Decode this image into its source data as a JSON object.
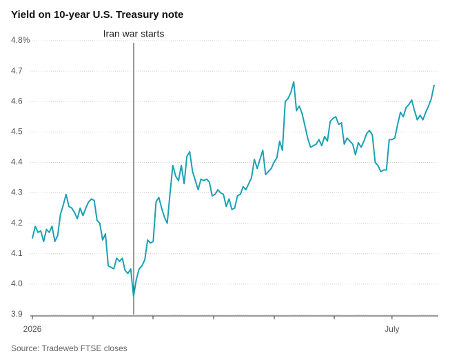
{
  "chart_data": {
    "type": "line",
    "title": "Yield on 10-year U.S. Treasury note",
    "annotation": "Iran war starts",
    "source": "Source: Tradeweb FTSE closes",
    "ylim": [
      3.9,
      4.8
    ],
    "yticks": [
      3.9,
      {
        "value": 4,
        "label": "4.0"
      },
      4.1,
      4.2,
      4.3,
      4.4,
      4.5,
      4.6,
      4.7,
      {
        "value": 4.8,
        "label": "4.8%"
      }
    ],
    "grid": true,
    "categories": [
      "2026",
      null,
      null,
      null,
      null,
      null,
      null,
      null,
      null,
      null,
      null,
      null,
      null,
      null,
      null,
      null,
      null,
      null,
      null,
      null,
      null,
      null,
      null,
      null,
      null,
      null,
      null,
      null,
      null,
      null,
      null,
      null,
      null,
      null,
      null,
      null,
      null,
      null,
      null,
      null,
      null,
      null,
      null,
      null,
      null,
      null,
      null,
      null,
      null,
      null,
      null,
      null,
      null,
      null,
      null,
      null,
      null,
      null,
      null,
      null,
      null,
      null,
      null,
      null,
      null,
      null,
      null,
      null,
      null,
      null,
      null,
      null,
      null,
      null,
      null,
      null,
      null,
      null,
      null,
      null,
      null,
      null,
      null,
      null,
      null,
      null,
      null,
      null,
      null,
      null,
      null,
      null,
      null,
      null,
      null,
      null,
      null,
      null,
      null,
      null,
      null,
      null,
      null,
      null,
      null,
      null,
      null,
      null,
      null,
      null,
      null,
      null,
      null,
      null,
      null,
      null,
      null,
      null,
      null,
      null,
      null,
      null,
      null,
      null,
      null,
      null,
      null,
      null,
      "July",
      null,
      null,
      null,
      null,
      null,
      null,
      null,
      null,
      null,
      null,
      null,
      null,
      null,
      null,
      null
    ],
    "series": [
      {
        "name": "10-year yield",
        "color": "#1aa0b3",
        "values": [
          4.15,
          4.19,
          4.17,
          4.175,
          4.14,
          4.18,
          4.17,
          4.19,
          4.14,
          4.16,
          4.23,
          4.26,
          4.295,
          4.255,
          4.25,
          4.235,
          4.215,
          4.25,
          4.225,
          4.25,
          4.27,
          4.28,
          4.275,
          4.21,
          4.2,
          4.145,
          4.165,
          4.06,
          4.055,
          4.05,
          4.085,
          4.075,
          4.085,
          4.045,
          4.035,
          4.05,
          3.96,
          4.015,
          4.05,
          4.06,
          4.08,
          4.145,
          4.135,
          4.14,
          4.27,
          4.285,
          4.25,
          4.22,
          4.2,
          4.3,
          4.39,
          4.355,
          4.34,
          4.39,
          4.33,
          4.42,
          4.435,
          4.37,
          4.34,
          4.31,
          4.345,
          4.34,
          4.345,
          4.335,
          4.29,
          4.295,
          4.31,
          4.3,
          4.295,
          4.255,
          4.28,
          4.245,
          4.25,
          4.29,
          4.295,
          4.32,
          4.31,
          4.33,
          4.35,
          4.41,
          4.38,
          4.41,
          4.44,
          4.36,
          4.37,
          4.38,
          4.4,
          4.415,
          4.47,
          4.44,
          4.6,
          4.61,
          4.63,
          4.665,
          4.57,
          4.585,
          4.56,
          4.52,
          4.48,
          4.45,
          4.455,
          4.46,
          4.475,
          4.455,
          4.485,
          4.47,
          4.535,
          4.545,
          4.55,
          4.525,
          4.53,
          4.46,
          4.48,
          4.47,
          4.46,
          4.425,
          4.465,
          4.45,
          4.47,
          4.495,
          4.505,
          4.49,
          4.4,
          4.39,
          4.37,
          4.375,
          4.375,
          4.475,
          4.475,
          4.48,
          4.525,
          4.565,
          4.55,
          4.58,
          4.59,
          4.605,
          4.57,
          4.54,
          4.555,
          4.54,
          4.565,
          4.585,
          4.61,
          4.655
        ]
      }
    ]
  }
}
